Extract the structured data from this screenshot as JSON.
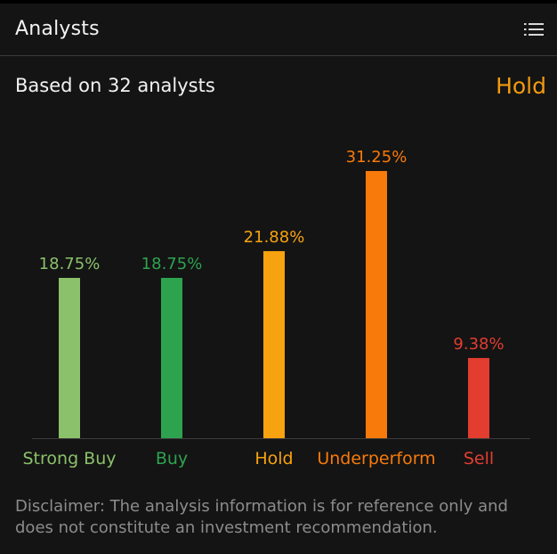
{
  "header": {
    "title": "Analysts",
    "menu_icon": "list-icon"
  },
  "summary": {
    "based_on": "Based on 32 analysts",
    "rating": "Hold",
    "rating_color": "#f29a0e"
  },
  "chart_data": {
    "type": "bar",
    "categories": [
      "Strong Buy",
      "Buy",
      "Hold",
      "Underperform",
      "Sell"
    ],
    "values": [
      18.75,
      18.75,
      21.88,
      31.25,
      9.38
    ],
    "value_labels": [
      "18.75%",
      "18.75%",
      "21.88%",
      "31.25%",
      "9.38%"
    ],
    "colors": [
      "#8bc16a",
      "#2ea34f",
      "#f7a20f",
      "#f77a0a",
      "#e23d2f"
    ],
    "ylim": [
      0,
      31.25
    ],
    "grid": false,
    "legend": "none"
  },
  "disclaimer": "Disclaimer: The analysis information is for reference only and does not constitute an investment recommendation."
}
